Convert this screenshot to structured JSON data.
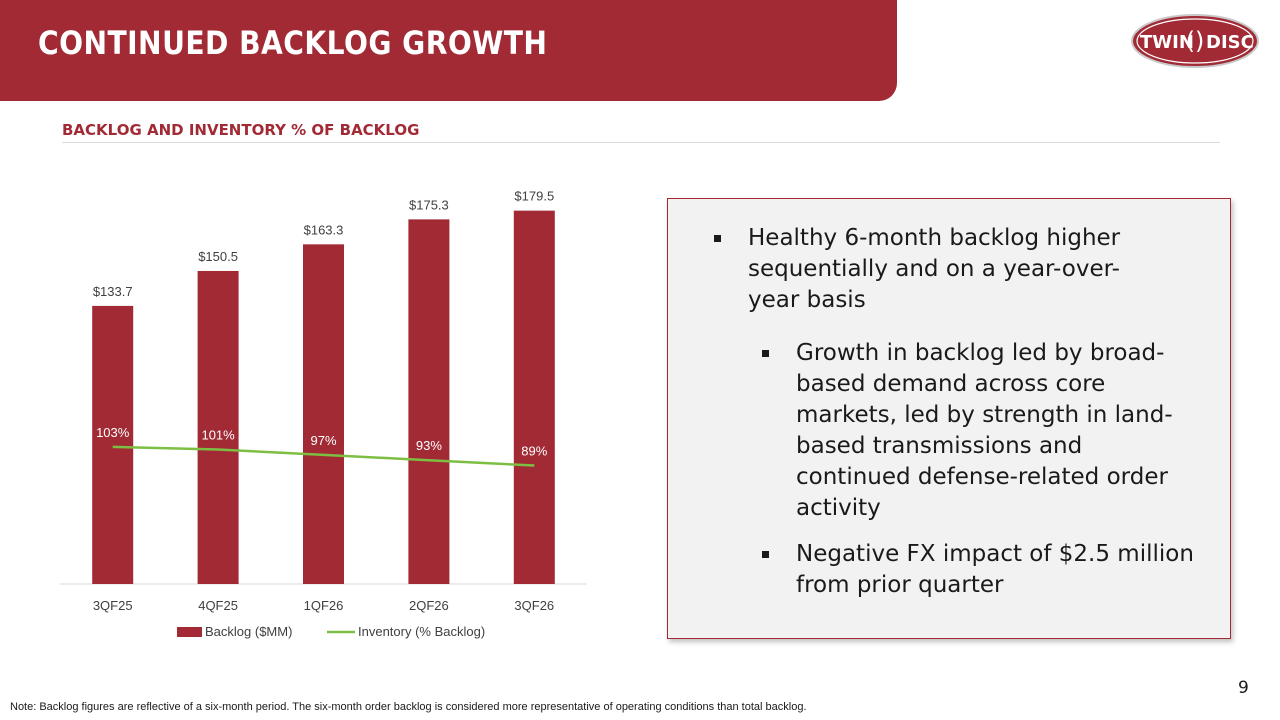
{
  "header": {
    "title": "CONTINUED BACKLOG GROWTH",
    "logo_text": "TWINDISC"
  },
  "subtitle": "BACKLOG AND INVENTORY % OF BACKLOG",
  "chart_data": {
    "type": "bar",
    "categories": [
      "3QF25",
      "4QF25",
      "1QF26",
      "2QF26",
      "3QF26"
    ],
    "series": [
      {
        "name": "Backlog ($MM)",
        "type": "bar",
        "values": [
          133.7,
          150.5,
          163.3,
          175.3,
          179.5
        ],
        "labels": [
          "$133.7",
          "$150.5",
          "$163.3",
          "$175.3",
          "$179.5"
        ],
        "color": "#A12A35"
      },
      {
        "name": "Inventory (% Backlog)",
        "type": "line",
        "values": [
          103,
          101,
          97,
          93,
          89
        ],
        "labels": [
          "103%",
          "101%",
          "97%",
          "93%",
          "89%"
        ],
        "color": "#7CBF42"
      }
    ],
    "ylim_bar": [
      0,
      200
    ],
    "ylim_line": [
      0,
      200
    ],
    "legend": "bottom",
    "grid": false
  },
  "bullets": [
    {
      "text": "Healthy 6-month backlog higher sequentially and on a year-over-year basis"
    },
    {
      "text": "Growth in backlog led by broad-based demand across core markets, led by strength in land-based transmissions and continued defense-related order activity"
    },
    {
      "text": "Negative FX impact of $2.5 million from prior quarter"
    }
  ],
  "page_number": "9",
  "footnote": "Note: Backlog figures are reflective of a six-month period. The six-month order backlog is considered more representative of operating conditions than total backlog.",
  "colors": {
    "brand": "#A12A35",
    "line": "#7CBF42"
  }
}
